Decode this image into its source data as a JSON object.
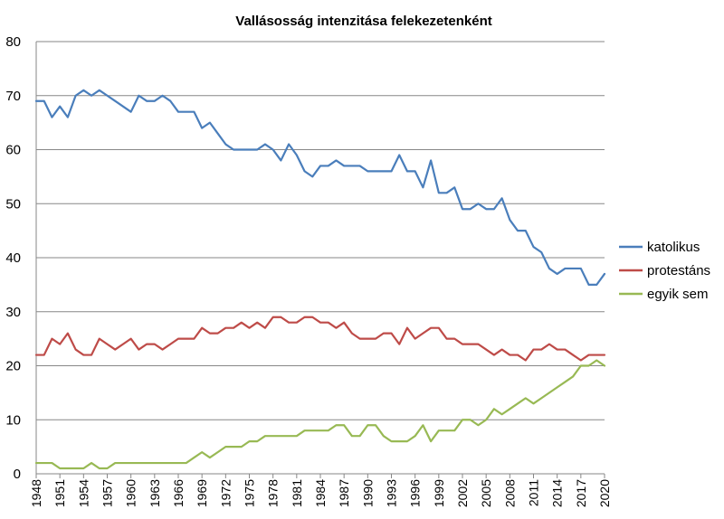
{
  "chart_data": {
    "type": "line",
    "title": "Vallásosság intenzitása felekezetenként",
    "xlabel": "",
    "ylabel": "",
    "ylim": [
      0,
      80
    ],
    "yticks": [
      0,
      10,
      20,
      30,
      40,
      50,
      60,
      70,
      80
    ],
    "x": [
      1948,
      1949,
      1950,
      1951,
      1952,
      1953,
      1954,
      1955,
      1956,
      1957,
      1958,
      1959,
      1960,
      1961,
      1962,
      1963,
      1964,
      1965,
      1966,
      1967,
      1968,
      1969,
      1970,
      1971,
      1972,
      1973,
      1974,
      1975,
      1976,
      1977,
      1978,
      1979,
      1980,
      1981,
      1982,
      1983,
      1984,
      1985,
      1986,
      1987,
      1988,
      1989,
      1990,
      1991,
      1992,
      1993,
      1994,
      1995,
      1996,
      1997,
      1998,
      1999,
      2000,
      2001,
      2002,
      2003,
      2004,
      2005,
      2006,
      2007,
      2008,
      2009,
      2010,
      2011,
      2012,
      2013,
      2014,
      2015,
      2016,
      2017,
      2018,
      2019,
      2020
    ],
    "xtick_labels": [
      "1948",
      "1951",
      "1954",
      "1957",
      "1960",
      "1963",
      "1966",
      "1969",
      "1972",
      "1975",
      "1978",
      "1981",
      "1984",
      "1987",
      "1990",
      "1993",
      "1996",
      "1999",
      "2002",
      "2005",
      "2008",
      "2011",
      "2014",
      "2017",
      "2020"
    ],
    "series": [
      {
        "name": "katolikus",
        "color": "#4a7ebb",
        "values": [
          69,
          69,
          66,
          68,
          66,
          70,
          71,
          70,
          71,
          70,
          69,
          68,
          67,
          70,
          69,
          69,
          70,
          69,
          67,
          67,
          67,
          64,
          65,
          63,
          61,
          60,
          60,
          60,
          60,
          61,
          60,
          58,
          61,
          59,
          56,
          55,
          57,
          57,
          58,
          57,
          57,
          57,
          56,
          56,
          56,
          56,
          59,
          56,
          56,
          53,
          58,
          52,
          52,
          53,
          49,
          49,
          50,
          49,
          49,
          51,
          47,
          45,
          45,
          42,
          41,
          38,
          37,
          38,
          38,
          38,
          35,
          35,
          37
        ]
      },
      {
        "name": "protestáns",
        "color": "#be4b48",
        "values": [
          22,
          22,
          25,
          24,
          26,
          23,
          22,
          22,
          25,
          24,
          23,
          24,
          25,
          23,
          24,
          24,
          23,
          24,
          25,
          25,
          25,
          27,
          26,
          26,
          27,
          27,
          28,
          27,
          28,
          27,
          29,
          29,
          28,
          28,
          29,
          29,
          28,
          28,
          27,
          28,
          26,
          25,
          25,
          25,
          26,
          26,
          24,
          27,
          25,
          26,
          27,
          27,
          25,
          25,
          24,
          24,
          24,
          23,
          22,
          23,
          22,
          22,
          21,
          23,
          23,
          24,
          23,
          23,
          22,
          21,
          22,
          22,
          22
        ]
      },
      {
        "name": "egyik sem",
        "color": "#98b954",
        "values": [
          2,
          2,
          2,
          1,
          1,
          1,
          1,
          2,
          1,
          1,
          2,
          2,
          2,
          2,
          2,
          2,
          2,
          2,
          2,
          2,
          3,
          4,
          3,
          4,
          5,
          5,
          5,
          6,
          6,
          7,
          7,
          7,
          7,
          7,
          8,
          8,
          8,
          8,
          9,
          9,
          7,
          7,
          9,
          9,
          7,
          6,
          6,
          6,
          7,
          9,
          6,
          8,
          8,
          8,
          10,
          10,
          9,
          10,
          12,
          11,
          12,
          13,
          14,
          13,
          14,
          15,
          16,
          17,
          18,
          20,
          20,
          21,
          20
        ]
      }
    ],
    "legend_position": "right",
    "grid": true
  }
}
